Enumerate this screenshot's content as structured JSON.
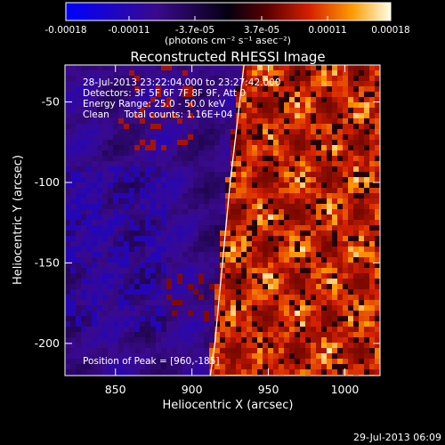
{
  "chart_data": {
    "type": "heatmap",
    "title": "Reconstructed RHESSI Image",
    "xlabel": "Heliocentric X (arcsec)",
    "ylabel": "Heliocentric Y (arcsec)",
    "xlim": [
      817,
      1023
    ],
    "ylim": [
      -220,
      -27
    ],
    "x_ticks": [
      850,
      900,
      950,
      1000
    ],
    "y_ticks": [
      -50,
      -100,
      -150,
      -200
    ],
    "colorbar": {
      "ticks": [
        -0.00018,
        -0.00011,
        -3.7e-05,
        3.7e-05,
        0.00011,
        0.00018
      ],
      "tick_labels": [
        "-0.00018",
        "-0.00011",
        "-3.7e-05",
        "3.7e-05",
        "0.00011",
        "0.00018"
      ],
      "unit_label": "(photons cm⁻² s⁻¹ asec⁻²)"
    },
    "annotations": [
      "28-Jul-2013 23:22:04.000 to 23:27:42.000",
      "Detectors: 3F 5F 6F 7F 8F 9F, Att 0",
      "Energy Range: 25.0 - 50.0 keV",
      "Clean     Total counts: 1.16E+04"
    ],
    "peak_label": "Position of Peak = [960,-185]",
    "limb_curve": [
      [
        934,
        -27
      ],
      [
        930,
        -60
      ],
      [
        925,
        -100
      ],
      [
        920,
        -150
      ],
      [
        915,
        -200
      ],
      [
        912,
        -220
      ]
    ]
  },
  "footer": {
    "timestamp": "29-Jul-2013 06:09"
  }
}
